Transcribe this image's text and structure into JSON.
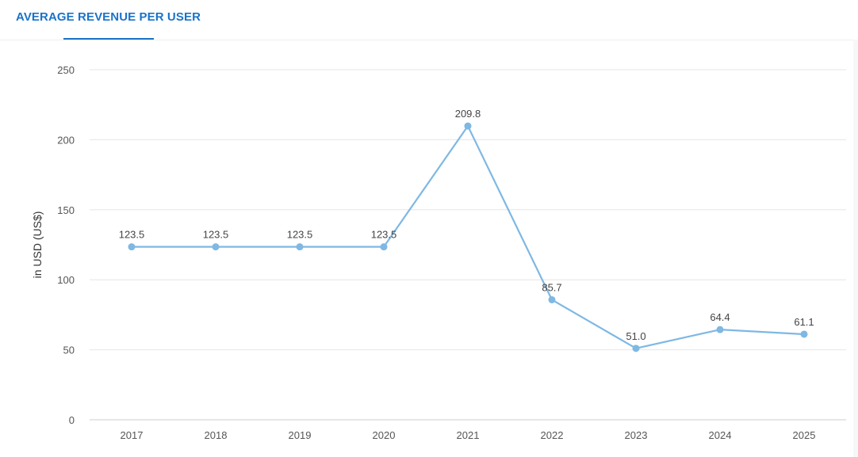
{
  "tab": {
    "title": "AVERAGE REVENUE PER USER"
  },
  "colors": {
    "accent": "#1a73c8",
    "series": "#7fb8e3",
    "grid": "#e6e6e6"
  },
  "chart_data": {
    "type": "line",
    "categories": [
      "2017",
      "2018",
      "2019",
      "2020",
      "2021",
      "2022",
      "2023",
      "2024",
      "2025"
    ],
    "values": [
      123.5,
      123.5,
      123.5,
      123.5,
      209.8,
      85.7,
      51.0,
      64.4,
      61.1
    ],
    "data_labels": [
      "123.5",
      "123.5",
      "123.5",
      "123.5",
      "209.8",
      "85.7",
      "51.0",
      "64.4",
      "61.1"
    ],
    "ylabel": "in USD (US$)",
    "ylim": [
      0,
      250
    ],
    "yticks": [
      0,
      50,
      100,
      150,
      200,
      250
    ],
    "grid": true,
    "legend": "none"
  }
}
